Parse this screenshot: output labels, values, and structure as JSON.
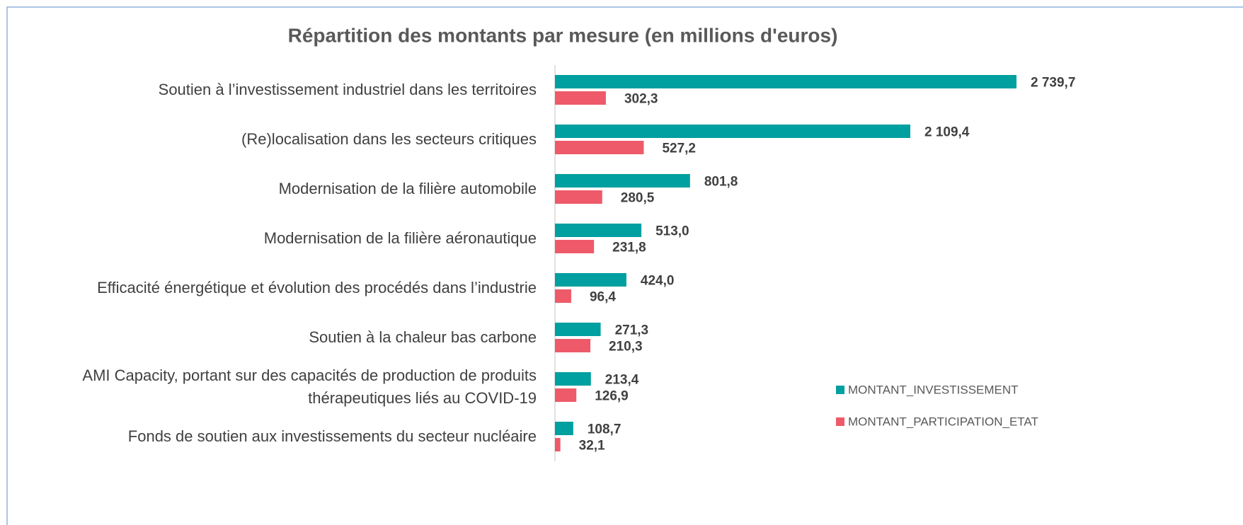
{
  "chart_data": {
    "type": "hbar",
    "title": "Répartition des montants par mesure (en millions d'euros)",
    "categories": [
      "Soutien à l’investissement industriel dans les territoires",
      "(Re)localisation dans les secteurs critiques",
      "Modernisation de la filière automobile",
      "Modernisation de la filière aéronautique",
      "Efficacité énergétique et évolution des procédés dans l’industrie",
      "Soutien à la chaleur bas carbone",
      "AMI Capacity, portant sur des capacités de production de produits thérapeutiques liés au COVID-19",
      "Fonds de soutien aux investissements du secteur nucléaire"
    ],
    "series": [
      {
        "name": "MONTANT_INVESTISSEMENT",
        "color": "#009fa0",
        "values": [
          2739.7,
          2109.4,
          801.8,
          513.0,
          424.0,
          271.3,
          213.4,
          108.7
        ],
        "value_labels": [
          "2 739,7",
          "2 109,4",
          "801,8",
          "513,0",
          "424,0",
          "271,3",
          "213,4",
          "108,7"
        ]
      },
      {
        "name": "MONTANT_PARTICIPATION_ETAT",
        "color": "#ee5a69",
        "values": [
          302.3,
          527.2,
          280.5,
          231.8,
          96.4,
          210.3,
          126.9,
          32.1
        ],
        "value_labels": [
          "302,3",
          "527,2",
          "280,5",
          "231,8",
          "96,4",
          "210,3",
          "126,9",
          "32,1"
        ]
      }
    ],
    "legend": "right"
  }
}
